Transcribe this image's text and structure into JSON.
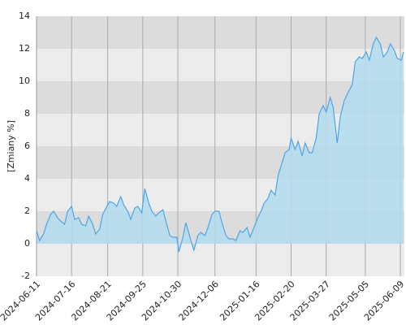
{
  "chart_data": {
    "type": "area",
    "y_label": "[Zmiany %]",
    "color": "#4da6e8",
    "fill": "#b3dcef",
    "band_colors": [
      "#ececec",
      "#dcdcdc"
    ],
    "x": [
      "2024-06-11",
      "2024-06-14",
      "2024-06-18",
      "2024-06-21",
      "2024-06-25",
      "2024-06-28",
      "2024-07-02",
      "2024-07-05",
      "2024-07-09",
      "2024-07-12",
      "2024-07-16",
      "2024-07-19",
      "2024-07-23",
      "2024-07-26",
      "2024-07-30",
      "2024-08-02",
      "2024-08-06",
      "2024-08-09",
      "2024-08-13",
      "2024-08-16",
      "2024-08-21",
      "2024-08-23",
      "2024-08-27",
      "2024-08-30",
      "2024-09-03",
      "2024-09-06",
      "2024-09-10",
      "2024-09-13",
      "2024-09-17",
      "2024-09-20",
      "2024-09-24",
      "2024-09-27",
      "2024-10-01",
      "2024-10-04",
      "2024-10-08",
      "2024-10-11",
      "2024-10-15",
      "2024-10-18",
      "2024-10-22",
      "2024-10-25",
      "2024-10-29",
      "2024-10-31",
      "2024-11-04",
      "2024-11-07",
      "2024-11-12",
      "2024-11-15",
      "2024-11-19",
      "2024-11-22",
      "2024-11-26",
      "2024-11-29",
      "2024-12-03",
      "2024-12-06",
      "2024-12-10",
      "2024-12-13",
      "2024-12-17",
      "2024-12-20",
      "2024-12-24",
      "2024-12-27",
      "2024-12-31",
      "2025-01-03",
      "2025-01-07",
      "2025-01-10",
      "2025-01-14",
      "2025-01-17",
      "2025-01-21",
      "2025-01-24",
      "2025-01-28",
      "2025-01-31",
      "2025-02-04",
      "2025-02-07",
      "2025-02-11",
      "2025-02-14",
      "2025-02-18",
      "2025-02-20",
      "2025-02-24",
      "2025-02-27",
      "2025-03-03",
      "2025-03-06",
      "2025-03-10",
      "2025-03-13",
      "2025-03-17",
      "2025-03-20",
      "2025-03-24",
      "2025-03-27",
      "2025-03-31",
      "2025-04-03",
      "2025-04-07",
      "2025-04-10",
      "2025-04-14",
      "2025-04-17",
      "2025-04-22",
      "2025-04-25",
      "2025-04-29",
      "2025-05-02",
      "2025-05-06",
      "2025-05-09",
      "2025-05-13",
      "2025-05-16",
      "2025-05-20",
      "2025-05-23",
      "2025-05-27",
      "2025-05-30",
      "2025-06-03",
      "2025-06-06",
      "2025-06-10",
      "2025-06-12"
    ],
    "values": [
      0.8,
      0.2,
      0.6,
      1.2,
      1.8,
      2.0,
      1.6,
      1.4,
      1.2,
      2.0,
      2.3,
      1.5,
      1.6,
      1.2,
      1.1,
      1.7,
      1.2,
      0.6,
      0.9,
      1.8,
      2.4,
      2.6,
      2.5,
      2.3,
      2.9,
      2.4,
      2.0,
      1.5,
      2.2,
      2.3,
      1.9,
      3.4,
      2.5,
      2.0,
      1.7,
      1.9,
      2.1,
      1.4,
      0.5,
      0.4,
      0.4,
      -0.5,
      0.4,
      1.3,
      0.2,
      -0.4,
      0.5,
      0.7,
      0.5,
      1.0,
      1.8,
      2.0,
      2.0,
      1.3,
      0.5,
      0.3,
      0.3,
      0.2,
      0.8,
      0.7,
      1.0,
      0.4,
      1.0,
      1.5,
      2.0,
      2.5,
      2.8,
      3.3,
      3.0,
      4.2,
      5.0,
      5.6,
      5.8,
      6.5,
      5.8,
      6.3,
      5.4,
      6.2,
      5.6,
      5.6,
      6.5,
      8.0,
      8.5,
      8.1,
      9.0,
      8.4,
      6.2,
      7.8,
      8.8,
      9.2,
      9.8,
      11.2,
      11.5,
      11.4,
      11.8,
      11.3,
      12.3,
      12.7,
      12.3,
      11.5,
      11.8,
      12.3,
      11.9,
      11.4,
      11.3,
      11.8
    ],
    "xlim": [
      "2024-06-11",
      "2025-06-13"
    ],
    "xticks": [
      "2024-06-11",
      "2024-07-16",
      "2024-08-21",
      "2024-09-25",
      "2024-10-30",
      "2024-12-06",
      "2025-01-16",
      "2025-02-20",
      "2025-03-27",
      "2025-05-05",
      "2025-06-09"
    ],
    "ylim": [
      -2,
      14
    ],
    "yticks": [
      -2,
      0,
      2,
      4,
      6,
      8,
      10,
      12,
      14
    ],
    "grid": true
  }
}
